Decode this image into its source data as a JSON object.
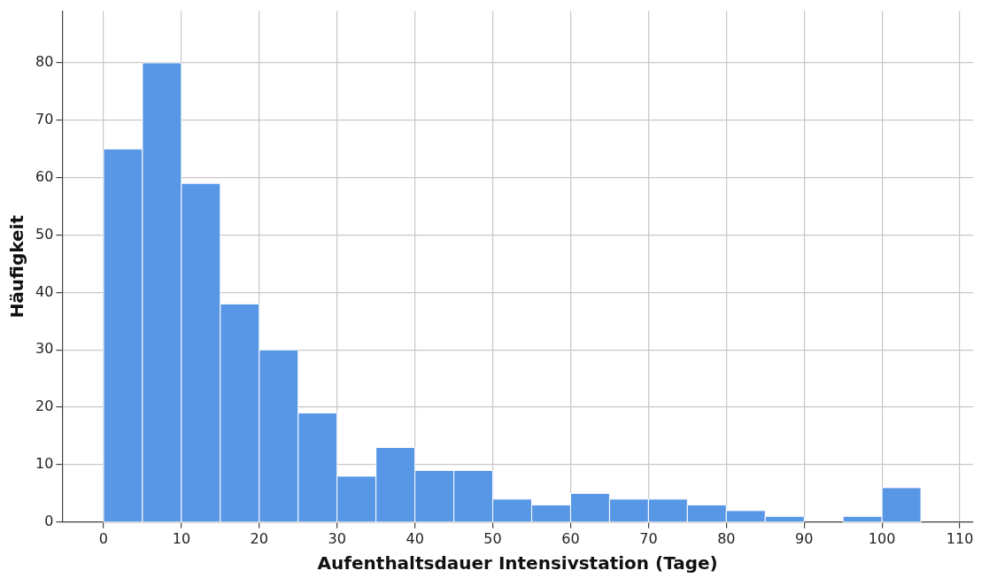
{
  "chart_data": {
    "type": "histogram",
    "xlabel": "Aufenthaltsdauer Intensivstation (Tage)",
    "ylabel": "Häufigkeit",
    "bins": [
      0,
      5,
      10,
      15,
      20,
      25,
      30,
      35,
      40,
      45,
      50,
      55,
      60,
      65,
      70,
      75,
      80,
      85,
      90,
      95,
      100,
      105
    ],
    "values": [
      65,
      80,
      59,
      38,
      30,
      19,
      8,
      13,
      9,
      9,
      4,
      3,
      5,
      4,
      4,
      3,
      2,
      1,
      0,
      1,
      6
    ],
    "color": "#5896e6",
    "xlim": [
      -5.3,
      111.7
    ],
    "xticks": [
      0,
      10,
      20,
      30,
      40,
      50,
      60,
      70,
      80,
      90,
      100,
      110
    ],
    "ylim": [
      0,
      89
    ],
    "yticks": [
      0,
      10,
      20,
      30,
      40,
      50,
      60,
      70,
      80
    ],
    "grid": true,
    "legend": false
  }
}
